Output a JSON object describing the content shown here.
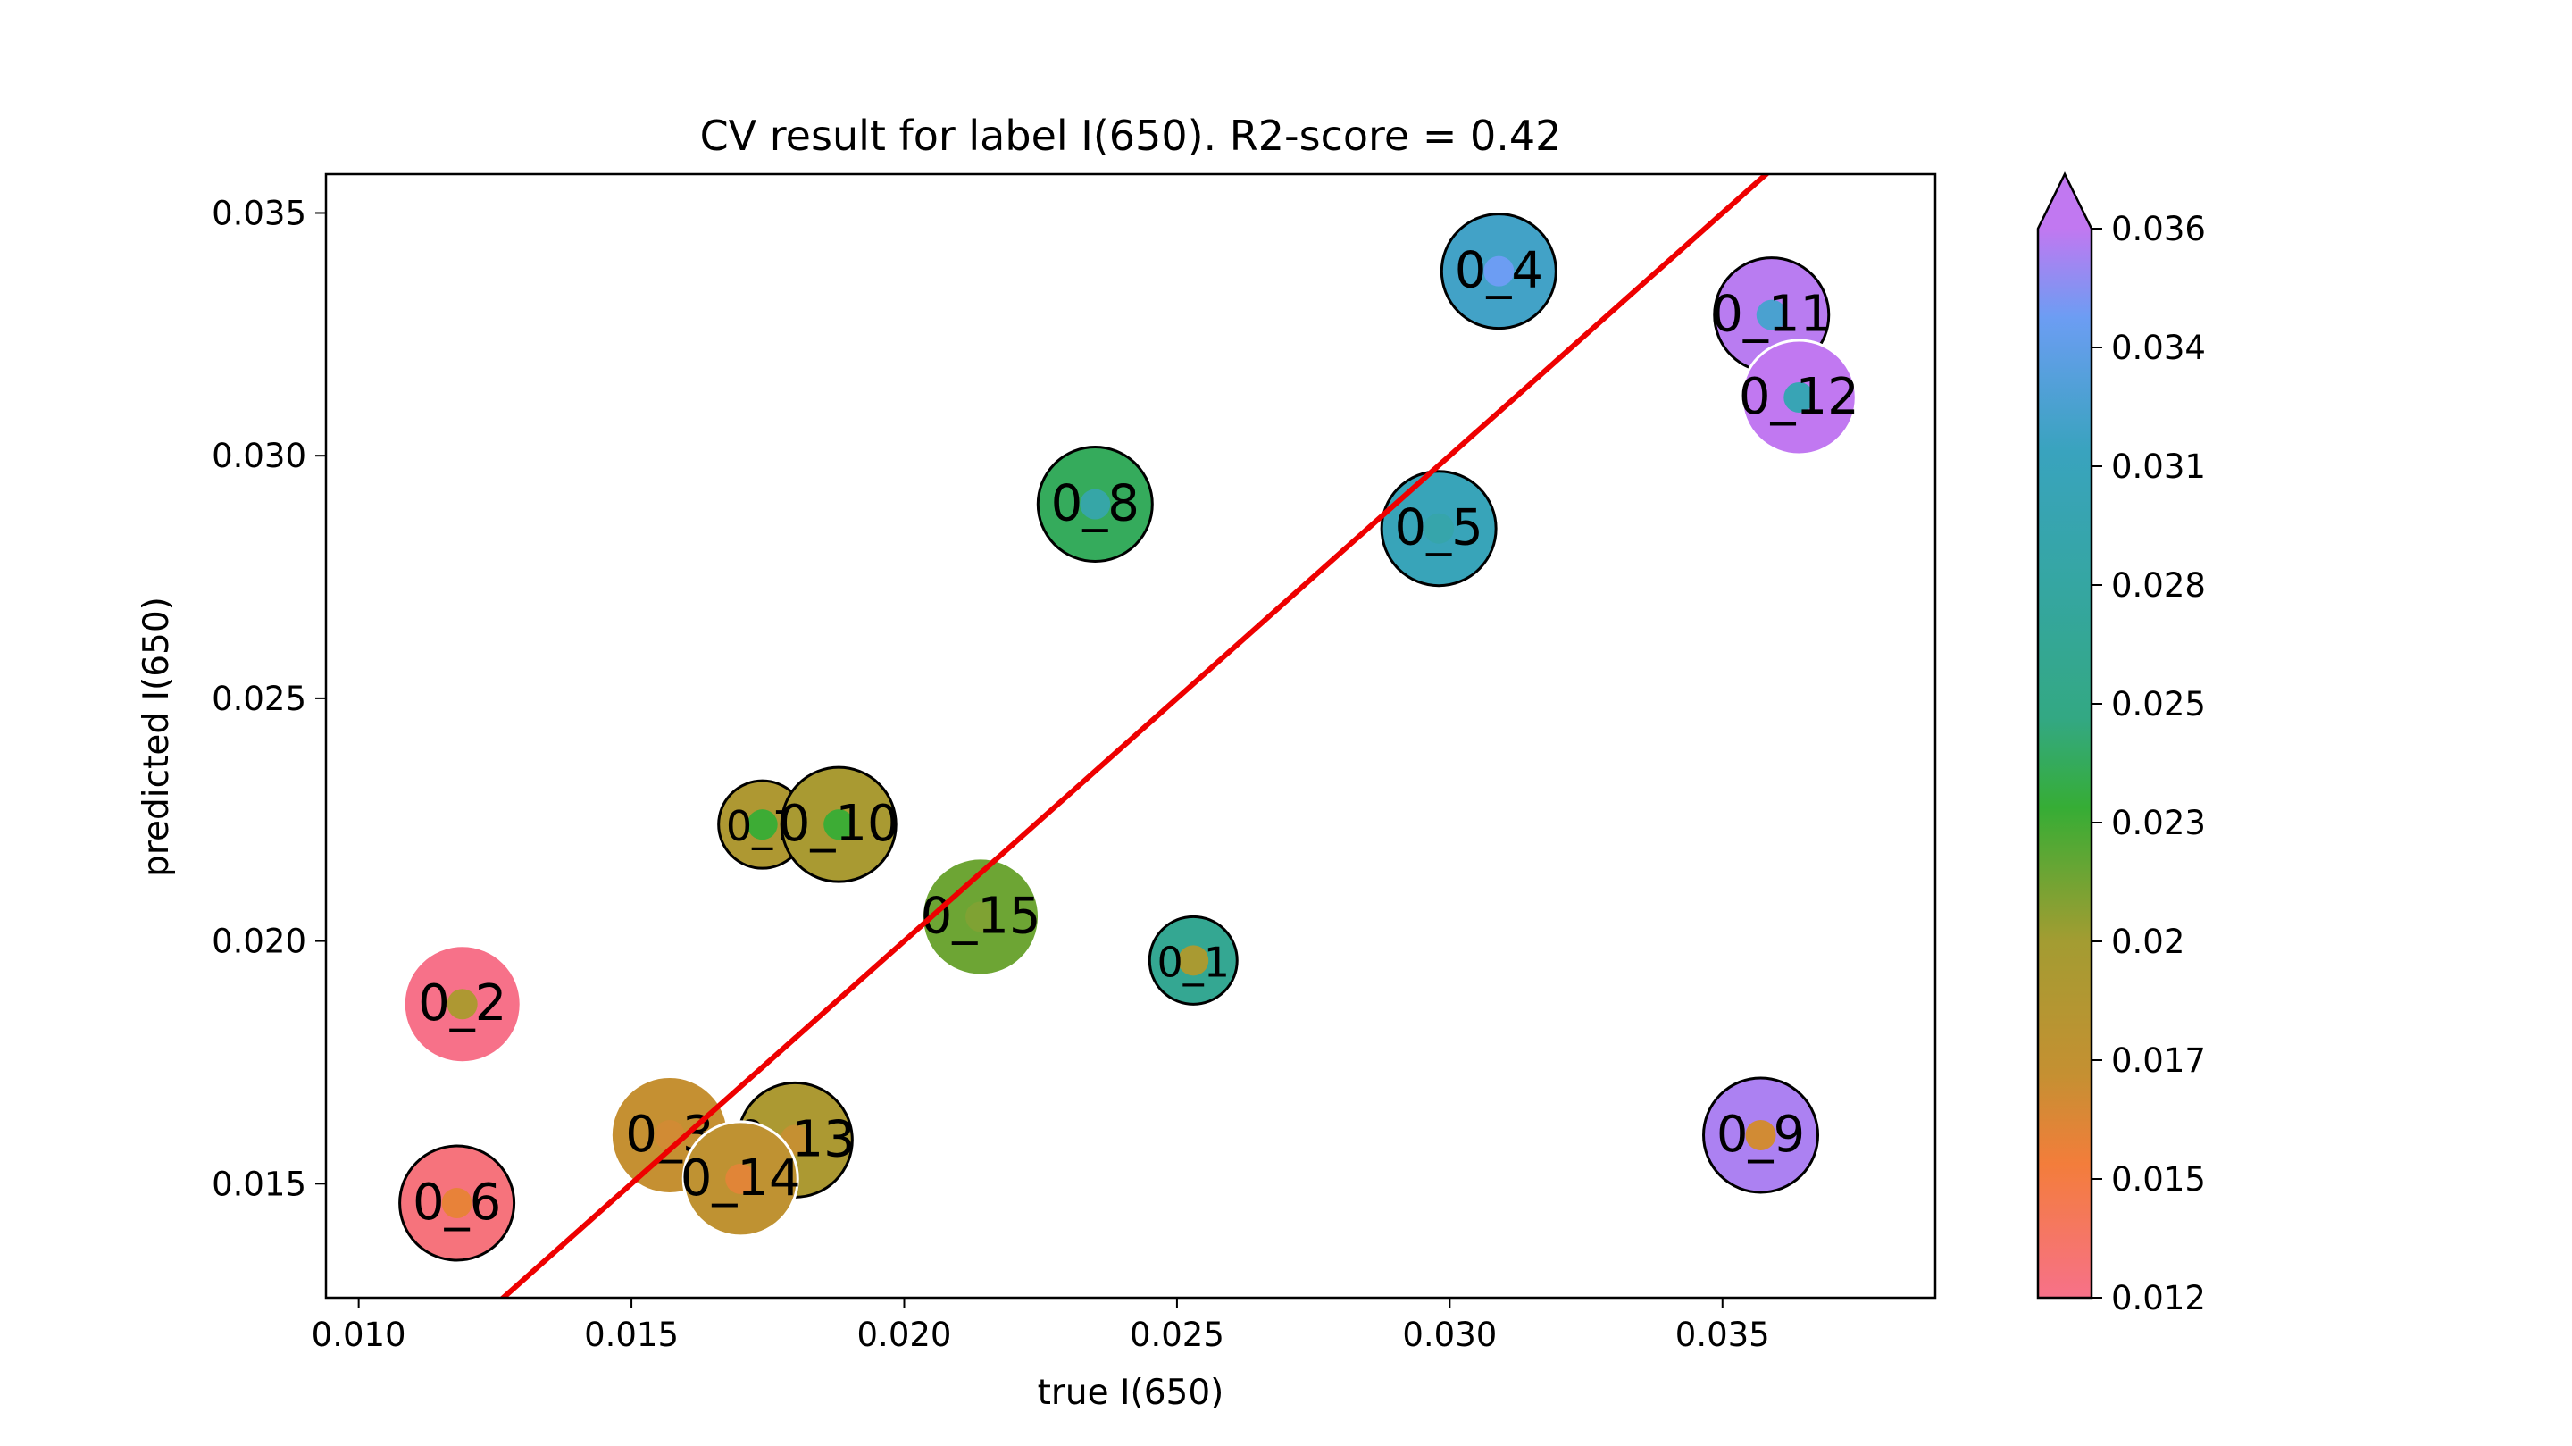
{
  "chart_data": {
    "type": "scatter",
    "title": "CV result for label I(650). R2-score = 0.42",
    "xlabel": "true I(650)",
    "ylabel": "predicted I(650)",
    "xlim": [
      0.0094,
      0.0389
    ],
    "ylim": [
      0.01265,
      0.0358
    ],
    "x_ticks": [
      "0.010",
      "0.015",
      "0.020",
      "0.025",
      "0.030",
      "0.035"
    ],
    "y_ticks": [
      "0.015",
      "0.020",
      "0.025",
      "0.030",
      "0.035"
    ],
    "grid": false,
    "fit_line": {
      "color": "#ee0000",
      "slope": 1,
      "intercept": 0
    },
    "colorbar": {
      "min": 0.012,
      "max": 0.036,
      "extend": "max",
      "ticks": [
        "0.036",
        "0.034",
        "0.031",
        "0.028",
        "0.025",
        "0.023",
        "0.02",
        "0.017",
        "0.015",
        "0.012"
      ],
      "stops": [
        {
          "v": 0.012,
          "c": "#f77189"
        },
        {
          "v": 0.015,
          "c": "#f37d3b"
        },
        {
          "v": 0.017,
          "c": "#c59032"
        },
        {
          "v": 0.02,
          "c": "#a39c32"
        },
        {
          "v": 0.023,
          "c": "#36ad35"
        },
        {
          "v": 0.025,
          "c": "#33a883"
        },
        {
          "v": 0.028,
          "c": "#35a6a2"
        },
        {
          "v": 0.031,
          "c": "#39a3be"
        },
        {
          "v": 0.034,
          "c": "#6c9df3"
        },
        {
          "v": 0.036,
          "c": "#c178f1"
        }
      ]
    },
    "points": [
      {
        "label": "0_1",
        "x": 0.0253,
        "y": 0.0196,
        "true_color_value": 0.0265,
        "inner_value": 0.0195,
        "size": "small",
        "edge": "black"
      },
      {
        "label": "0_2",
        "x": 0.0119,
        "y": 0.0187,
        "true_color_value": 0.012,
        "inner_value": 0.019,
        "size": "medium",
        "edge": "none"
      },
      {
        "label": "0_3",
        "x": 0.0157,
        "y": 0.016,
        "true_color_value": 0.017,
        "inner_value": 0.0165,
        "size": "medium",
        "edge": "none"
      },
      {
        "label": "0_4",
        "x": 0.0309,
        "y": 0.0338,
        "true_color_value": 0.0315,
        "inner_value": 0.034,
        "size": "medium",
        "edge": "black"
      },
      {
        "label": "0_5",
        "x": 0.0298,
        "y": 0.0285,
        "true_color_value": 0.0305,
        "inner_value": 0.029,
        "size": "medium",
        "edge": "black"
      },
      {
        "label": "0_6",
        "x": 0.0118,
        "y": 0.0146,
        "true_color_value": 0.0125,
        "inner_value": 0.0155,
        "size": "medium",
        "edge": "black"
      },
      {
        "label": "0_7",
        "x": 0.0174,
        "y": 0.0224,
        "true_color_value": 0.019,
        "inner_value": 0.0228,
        "size": "small",
        "edge": "black"
      },
      {
        "label": "0_8",
        "x": 0.0235,
        "y": 0.029,
        "true_color_value": 0.024,
        "inner_value": 0.0285,
        "size": "medium",
        "edge": "black"
      },
      {
        "label": "0_9",
        "x": 0.0357,
        "y": 0.016,
        "true_color_value": 0.0355,
        "inner_value": 0.0165,
        "size": "medium",
        "edge": "black"
      },
      {
        "label": "0_10",
        "x": 0.0188,
        "y": 0.0224,
        "true_color_value": 0.0195,
        "inner_value": 0.0228,
        "size": "medium",
        "edge": "black"
      },
      {
        "label": "0_11",
        "x": 0.0359,
        "y": 0.0329,
        "true_color_value": 0.0358,
        "inner_value": 0.032,
        "size": "medium",
        "edge": "black"
      },
      {
        "label": "0_12",
        "x": 0.0364,
        "y": 0.0312,
        "true_color_value": 0.036,
        "inner_value": 0.03,
        "size": "medium",
        "edge": "white"
      },
      {
        "label": "0_13",
        "x": 0.018,
        "y": 0.0159,
        "true_color_value": 0.0192,
        "inner_value": 0.017,
        "size": "medium",
        "edge": "black"
      },
      {
        "label": "0_14",
        "x": 0.017,
        "y": 0.0151,
        "true_color_value": 0.0175,
        "inner_value": 0.0158,
        "size": "medium",
        "edge": "white"
      },
      {
        "label": "0_15",
        "x": 0.0214,
        "y": 0.0205,
        "true_color_value": 0.0215,
        "inner_value": 0.021,
        "size": "medium",
        "edge": "none"
      }
    ]
  }
}
